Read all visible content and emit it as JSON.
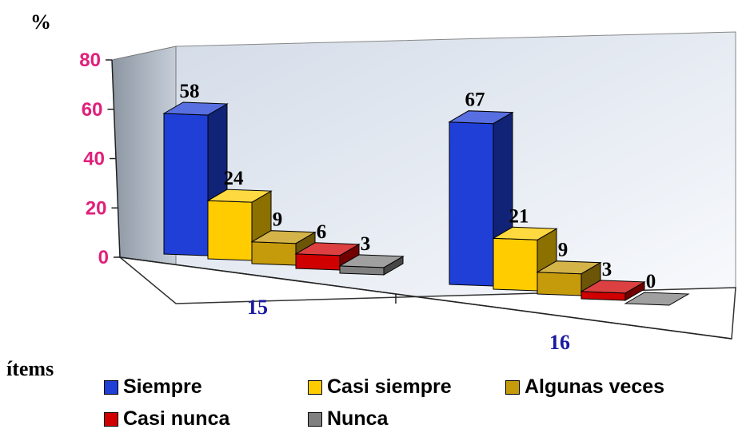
{
  "chart_data": {
    "type": "bar",
    "categories": [
      "15",
      "16"
    ],
    "series": [
      {
        "name": "Siempre",
        "color": "#1F3FD6",
        "values": [
          58,
          67
        ]
      },
      {
        "name": "Casi siempre",
        "color": "#FFCC00",
        "values": [
          24,
          21
        ]
      },
      {
        "name": "Algunas veces",
        "color": "#C59A0B",
        "values": [
          9,
          9
        ]
      },
      {
        "name": "Casi nunca",
        "color": "#D00000",
        "values": [
          6,
          3
        ]
      },
      {
        "name": "Nunca",
        "color": "#808080",
        "values": [
          3,
          0
        ]
      }
    ],
    "ylabel": "%",
    "xlabel": "ítems",
    "ylim": [
      0,
      80
    ],
    "yticks": [
      "0",
      "20",
      "40",
      "60",
      "80"
    ],
    "tick_color": "#E0207A",
    "category_color": "#1A1AA0",
    "legend_position": "bottom",
    "style": "3d"
  }
}
